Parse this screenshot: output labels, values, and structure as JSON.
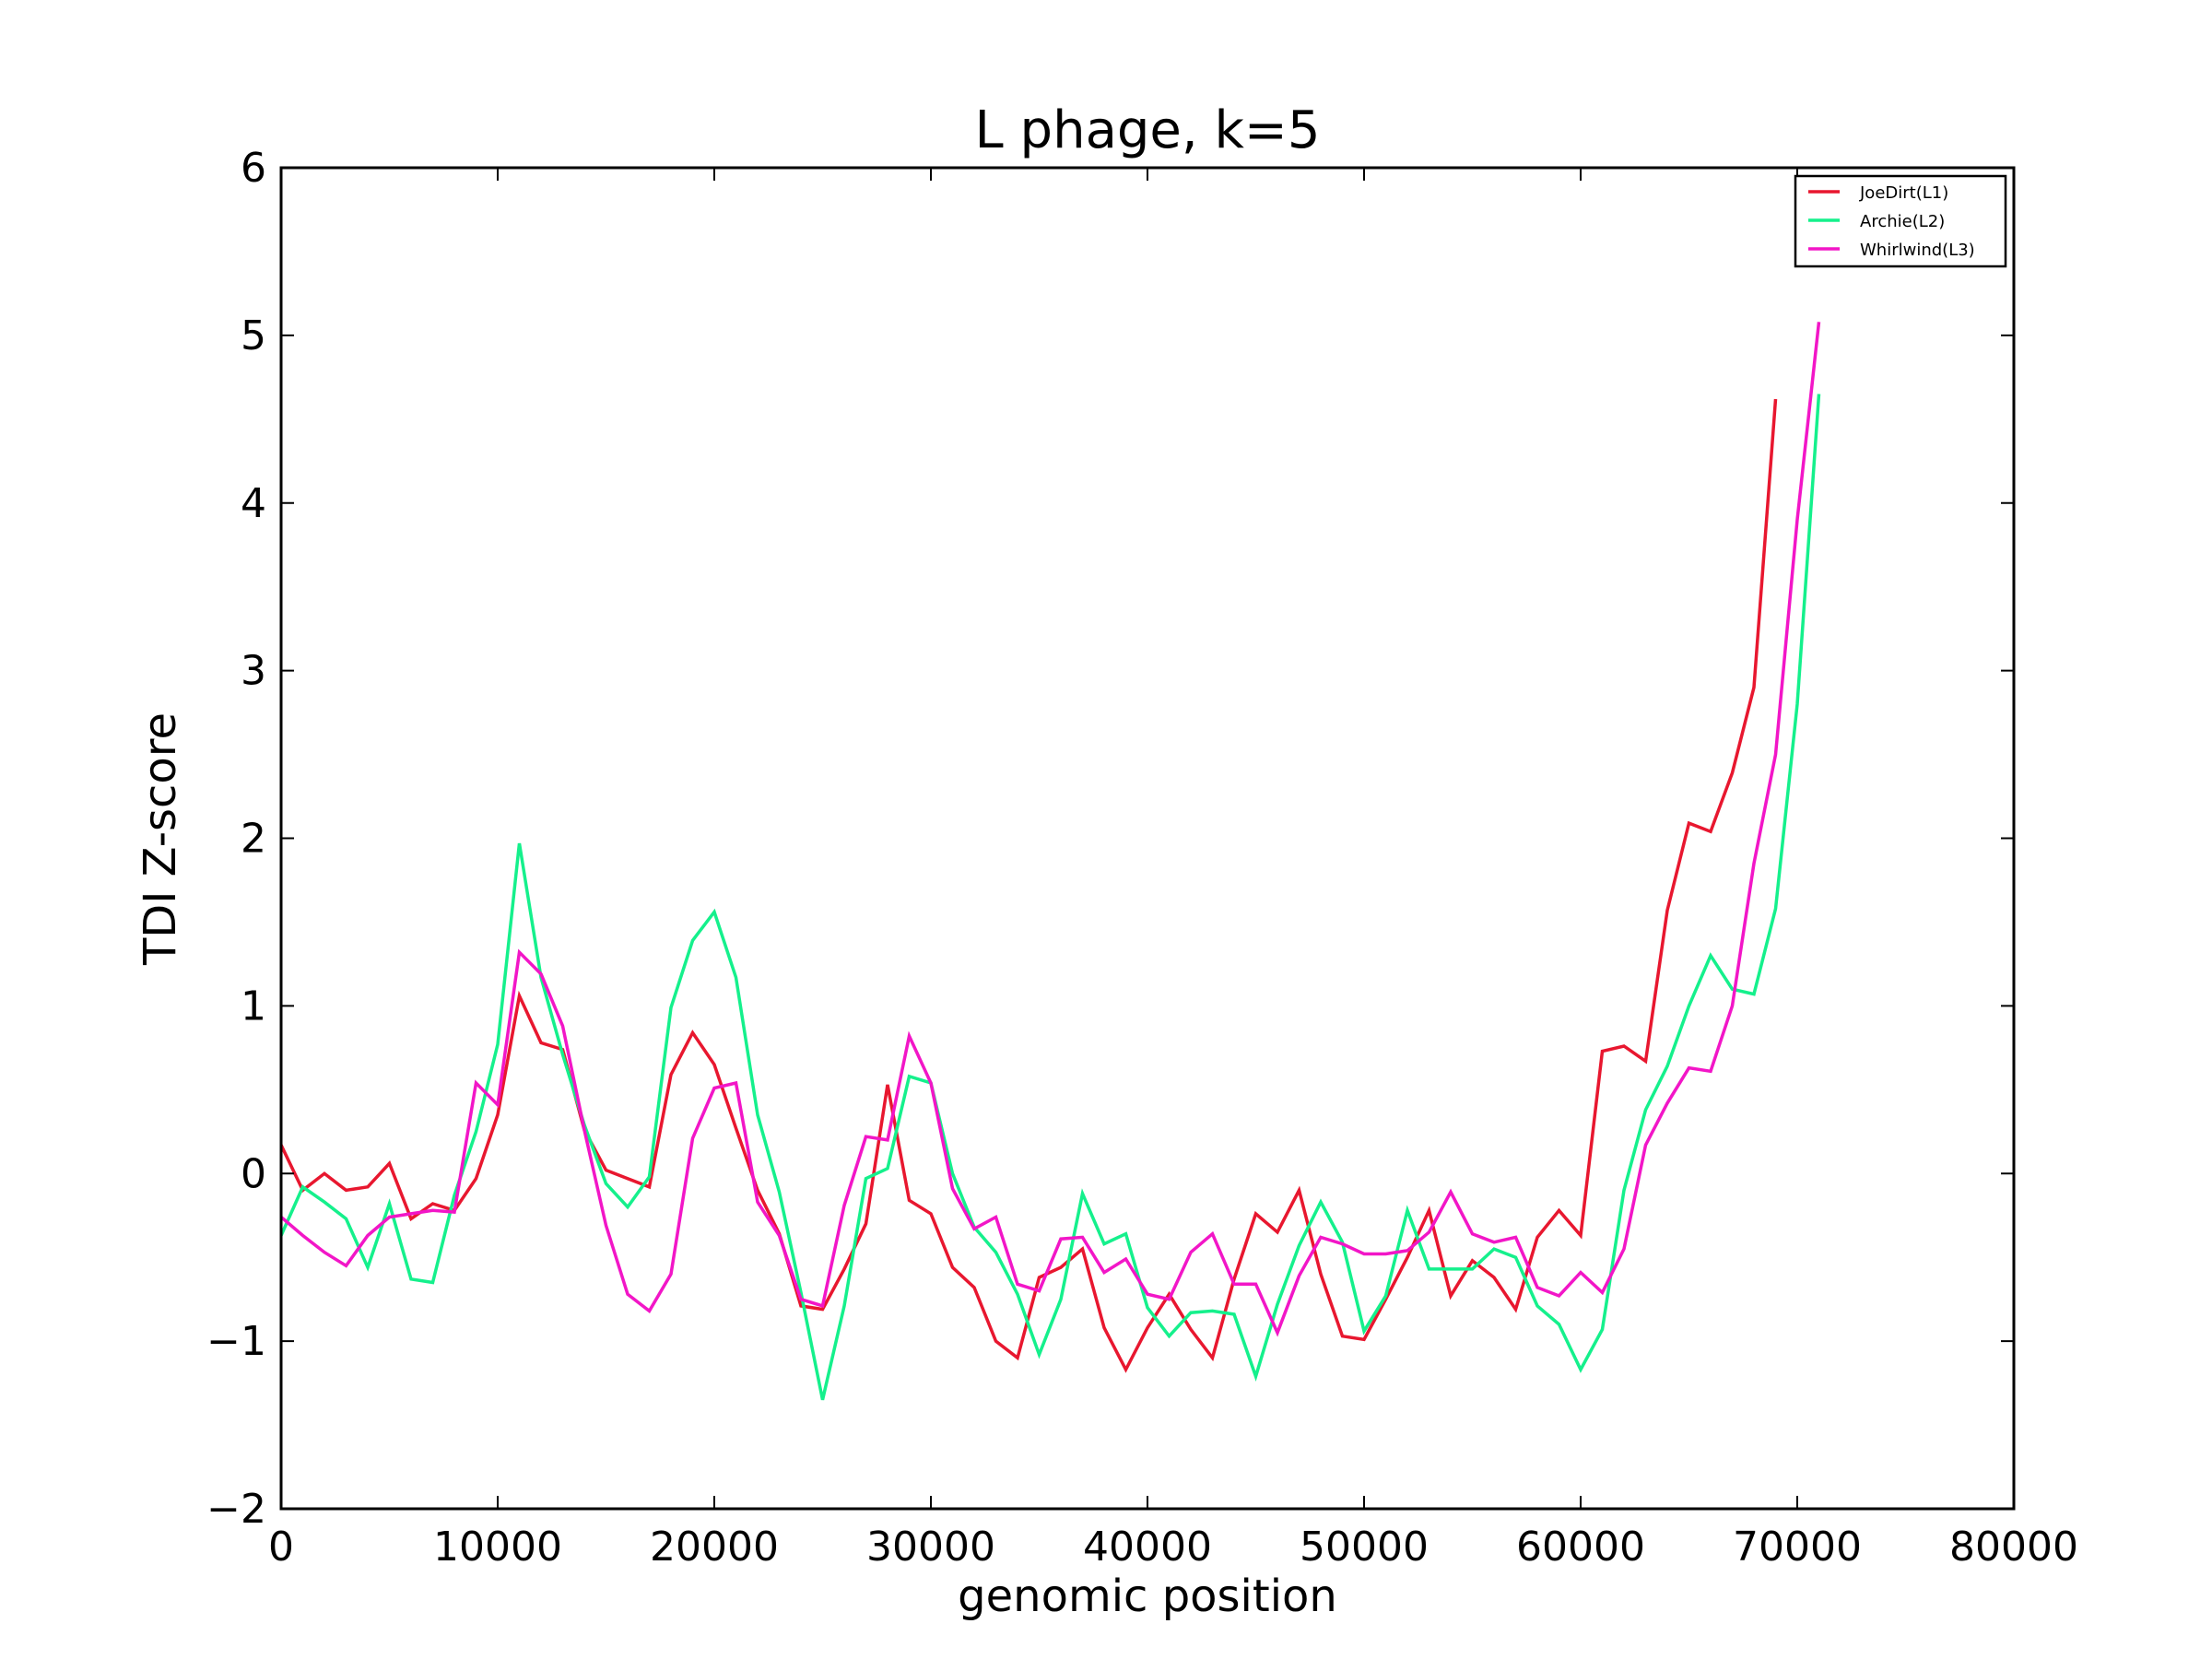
{
  "chart_data": {
    "type": "line",
    "title": "L phage, k=5",
    "xlabel": "genomic position",
    "ylabel": "TDI Z-score",
    "xlim": [
      0,
      80000
    ],
    "ylim": [
      -2,
      6
    ],
    "x_ticks": [
      0,
      10000,
      20000,
      30000,
      40000,
      50000,
      60000,
      70000,
      80000
    ],
    "x_tick_labels": [
      "0",
      "10000",
      "20000",
      "30000",
      "40000",
      "50000",
      "60000",
      "70000",
      "80000"
    ],
    "y_ticks": [
      -2,
      -1,
      0,
      1,
      2,
      3,
      4,
      5,
      6
    ],
    "y_tick_labels": [
      "−2",
      "−1",
      "0",
      "1",
      "2",
      "3",
      "4",
      "5",
      "6"
    ],
    "grid": false,
    "legend_position": "top-right",
    "series": [
      {
        "name": "JoeDirt(L1)",
        "color": "#e8172f",
        "points": [
          [
            0,
            0.17
          ],
          [
            1000,
            -0.1
          ],
          [
            2000,
            0.0
          ],
          [
            3000,
            -0.1
          ],
          [
            4000,
            -0.08
          ],
          [
            5000,
            0.06
          ],
          [
            6000,
            -0.27
          ],
          [
            7000,
            -0.18
          ],
          [
            8000,
            -0.22
          ],
          [
            9000,
            -0.03
          ],
          [
            10000,
            0.35
          ],
          [
            11000,
            1.06
          ],
          [
            12000,
            0.78
          ],
          [
            13000,
            0.74
          ],
          [
            14000,
            0.26
          ],
          [
            15000,
            0.02
          ],
          [
            16000,
            -0.03
          ],
          [
            17000,
            -0.08
          ],
          [
            18000,
            0.59
          ],
          [
            19000,
            0.84
          ],
          [
            20000,
            0.65
          ],
          [
            21000,
            0.27
          ],
          [
            22000,
            -0.1
          ],
          [
            23000,
            -0.36
          ],
          [
            24000,
            -0.79
          ],
          [
            25000,
            -0.81
          ],
          [
            26000,
            -0.57
          ],
          [
            27000,
            -0.3
          ],
          [
            28000,
            0.53
          ],
          [
            29000,
            -0.16
          ],
          [
            30000,
            -0.24
          ],
          [
            31000,
            -0.56
          ],
          [
            32000,
            -0.68
          ],
          [
            33000,
            -1.0
          ],
          [
            34000,
            -1.1
          ],
          [
            35000,
            -0.62
          ],
          [
            36000,
            -0.56
          ],
          [
            37000,
            -0.45
          ],
          [
            38000,
            -0.92
          ],
          [
            39000,
            -1.17
          ],
          [
            40000,
            -0.92
          ],
          [
            41000,
            -0.72
          ],
          [
            42000,
            -0.93
          ],
          [
            43000,
            -1.1
          ],
          [
            44000,
            -0.63
          ],
          [
            45000,
            -0.24
          ],
          [
            46000,
            -0.35
          ],
          [
            47000,
            -0.1
          ],
          [
            48000,
            -0.6
          ],
          [
            49000,
            -0.97
          ],
          [
            50000,
            -0.99
          ],
          [
            51000,
            -0.75
          ],
          [
            52000,
            -0.5
          ],
          [
            53000,
            -0.22
          ],
          [
            54000,
            -0.73
          ],
          [
            55000,
            -0.52
          ],
          [
            56000,
            -0.62
          ],
          [
            57000,
            -0.81
          ],
          [
            58000,
            -0.38
          ],
          [
            59000,
            -0.22
          ],
          [
            60000,
            -0.37
          ],
          [
            61000,
            0.73
          ],
          [
            62000,
            0.76
          ],
          [
            63000,
            0.67
          ],
          [
            64000,
            1.57
          ],
          [
            65000,
            2.09
          ],
          [
            66000,
            2.04
          ],
          [
            67000,
            2.39
          ],
          [
            68000,
            2.9
          ],
          [
            69000,
            4.62
          ]
        ]
      },
      {
        "name": "Archie(L2)",
        "color": "#15f08c",
        "points": [
          [
            0,
            -0.37
          ],
          [
            1000,
            -0.08
          ],
          [
            2000,
            -0.17
          ],
          [
            3000,
            -0.27
          ],
          [
            4000,
            -0.56
          ],
          [
            5000,
            -0.18
          ],
          [
            6000,
            -0.63
          ],
          [
            7000,
            -0.65
          ],
          [
            8000,
            -0.13
          ],
          [
            9000,
            0.25
          ],
          [
            10000,
            0.77
          ],
          [
            11000,
            1.97
          ],
          [
            12000,
            1.17
          ],
          [
            13000,
            0.71
          ],
          [
            14000,
            0.29
          ],
          [
            15000,
            -0.06
          ],
          [
            16000,
            -0.2
          ],
          [
            17000,
            -0.02
          ],
          [
            18000,
            0.99
          ],
          [
            19000,
            1.39
          ],
          [
            20000,
            1.56
          ],
          [
            21000,
            1.17
          ],
          [
            22000,
            0.35
          ],
          [
            23000,
            -0.11
          ],
          [
            24000,
            -0.71
          ],
          [
            25000,
            -1.35
          ],
          [
            26000,
            -0.79
          ],
          [
            27000,
            -0.03
          ],
          [
            28000,
            0.03
          ],
          [
            29000,
            0.58
          ],
          [
            30000,
            0.54
          ],
          [
            31000,
            0.0
          ],
          [
            32000,
            -0.32
          ],
          [
            33000,
            -0.47
          ],
          [
            34000,
            -0.72
          ],
          [
            35000,
            -1.08
          ],
          [
            36000,
            -0.75
          ],
          [
            37000,
            -0.12
          ],
          [
            38000,
            -0.42
          ],
          [
            39000,
            -0.36
          ],
          [
            40000,
            -0.8
          ],
          [
            41000,
            -0.97
          ],
          [
            42000,
            -0.83
          ],
          [
            43000,
            -0.82
          ],
          [
            44000,
            -0.84
          ],
          [
            45000,
            -1.21
          ],
          [
            46000,
            -0.78
          ],
          [
            47000,
            -0.43
          ],
          [
            48000,
            -0.17
          ],
          [
            49000,
            -0.41
          ],
          [
            50000,
            -0.94
          ],
          [
            51000,
            -0.73
          ],
          [
            52000,
            -0.22
          ],
          [
            53000,
            -0.57
          ],
          [
            54000,
            -0.57
          ],
          [
            55000,
            -0.57
          ],
          [
            56000,
            -0.45
          ],
          [
            57000,
            -0.5
          ],
          [
            58000,
            -0.79
          ],
          [
            59000,
            -0.9
          ],
          [
            60000,
            -1.17
          ],
          [
            61000,
            -0.93
          ],
          [
            62000,
            -0.1
          ],
          [
            63000,
            0.38
          ],
          [
            64000,
            0.64
          ],
          [
            65000,
            1.0
          ],
          [
            66000,
            1.3
          ],
          [
            67000,
            1.1
          ],
          [
            68000,
            1.07
          ],
          [
            69000,
            1.58
          ],
          [
            70000,
            2.8
          ],
          [
            71000,
            4.65
          ]
        ]
      },
      {
        "name": "Whirlwind(L3)",
        "color": "#f216c7",
        "points": [
          [
            0,
            -0.26
          ],
          [
            1000,
            -0.37
          ],
          [
            2000,
            -0.47
          ],
          [
            3000,
            -0.55
          ],
          [
            4000,
            -0.37
          ],
          [
            5000,
            -0.26
          ],
          [
            6000,
            -0.24
          ],
          [
            7000,
            -0.22
          ],
          [
            8000,
            -0.23
          ],
          [
            9000,
            0.54
          ],
          [
            10000,
            0.41
          ],
          [
            11000,
            1.32
          ],
          [
            12000,
            1.19
          ],
          [
            13000,
            0.88
          ],
          [
            14000,
            0.26
          ],
          [
            15000,
            -0.31
          ],
          [
            16000,
            -0.72
          ],
          [
            17000,
            -0.82
          ],
          [
            18000,
            -0.6
          ],
          [
            19000,
            0.21
          ],
          [
            20000,
            0.51
          ],
          [
            21000,
            0.54
          ],
          [
            22000,
            -0.17
          ],
          [
            23000,
            -0.37
          ],
          [
            24000,
            -0.75
          ],
          [
            25000,
            -0.79
          ],
          [
            26000,
            -0.19
          ],
          [
            27000,
            0.22
          ],
          [
            28000,
            0.2
          ],
          [
            29000,
            0.82
          ],
          [
            30000,
            0.54
          ],
          [
            31000,
            -0.09
          ],
          [
            32000,
            -0.33
          ],
          [
            33000,
            -0.26
          ],
          [
            34000,
            -0.66
          ],
          [
            35000,
            -0.7
          ],
          [
            36000,
            -0.39
          ],
          [
            37000,
            -0.38
          ],
          [
            38000,
            -0.59
          ],
          [
            39000,
            -0.51
          ],
          [
            40000,
            -0.72
          ],
          [
            41000,
            -0.75
          ],
          [
            42000,
            -0.47
          ],
          [
            43000,
            -0.36
          ],
          [
            44000,
            -0.66
          ],
          [
            45000,
            -0.66
          ],
          [
            46000,
            -0.95
          ],
          [
            47000,
            -0.61
          ],
          [
            48000,
            -0.38
          ],
          [
            49000,
            -0.42
          ],
          [
            50000,
            -0.48
          ],
          [
            51000,
            -0.48
          ],
          [
            52000,
            -0.46
          ],
          [
            53000,
            -0.35
          ],
          [
            54000,
            -0.11
          ],
          [
            55000,
            -0.36
          ],
          [
            56000,
            -0.41
          ],
          [
            57000,
            -0.38
          ],
          [
            58000,
            -0.68
          ],
          [
            59000,
            -0.73
          ],
          [
            60000,
            -0.59
          ],
          [
            61000,
            -0.71
          ],
          [
            62000,
            -0.45
          ],
          [
            63000,
            0.17
          ],
          [
            64000,
            0.42
          ],
          [
            65000,
            0.63
          ],
          [
            66000,
            0.61
          ],
          [
            67000,
            1.0
          ],
          [
            68000,
            1.85
          ],
          [
            69000,
            2.5
          ],
          [
            70000,
            3.9
          ],
          [
            71000,
            5.08
          ]
        ]
      }
    ]
  }
}
